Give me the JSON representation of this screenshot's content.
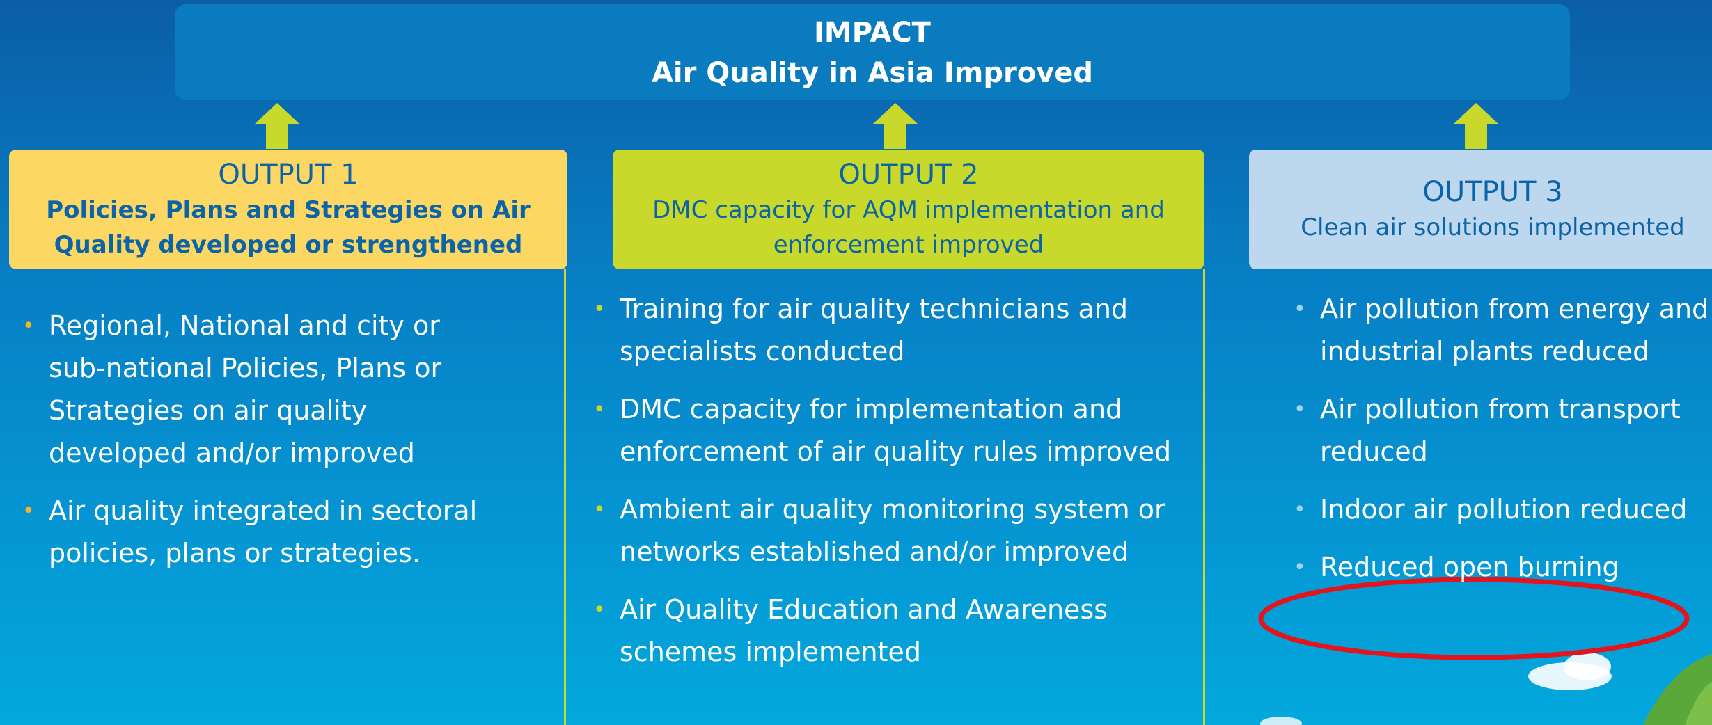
{
  "impact": {
    "title": "IMPACT",
    "subtitle": "Air Quality in Asia Improved"
  },
  "outputs": [
    {
      "title": "OUTPUT 1",
      "subtitle": "Policies, Plans and Strategies on Air Quality developed or strengthened",
      "bullets": [
        "Regional, National and city or sub-national  Policies, Plans or Strategies on air quality developed and/or improved",
        "Air quality integrated in sectoral policies, plans or strategies."
      ]
    },
    {
      "title": "OUTPUT 2",
      "subtitle": "DMC capacity for AQM implementation and enforcement improved",
      "bullets": [
        "Training for air quality technicians and specialists conducted",
        "DMC capacity for implementation and enforcement of air quality rules improved",
        "Ambient air quality monitoring system or networks established and/or improved",
        "Air Quality Education and Awareness schemes implemented"
      ]
    },
    {
      "title": "OUTPUT 3",
      "subtitle": "Clean air solutions implemented",
      "bullets": [
        "Air pollution from energy and industrial plants reduced",
        "Air pollution from transport reduced",
        "Indoor air pollution reduced",
        "Reduced open burning"
      ]
    }
  ]
}
